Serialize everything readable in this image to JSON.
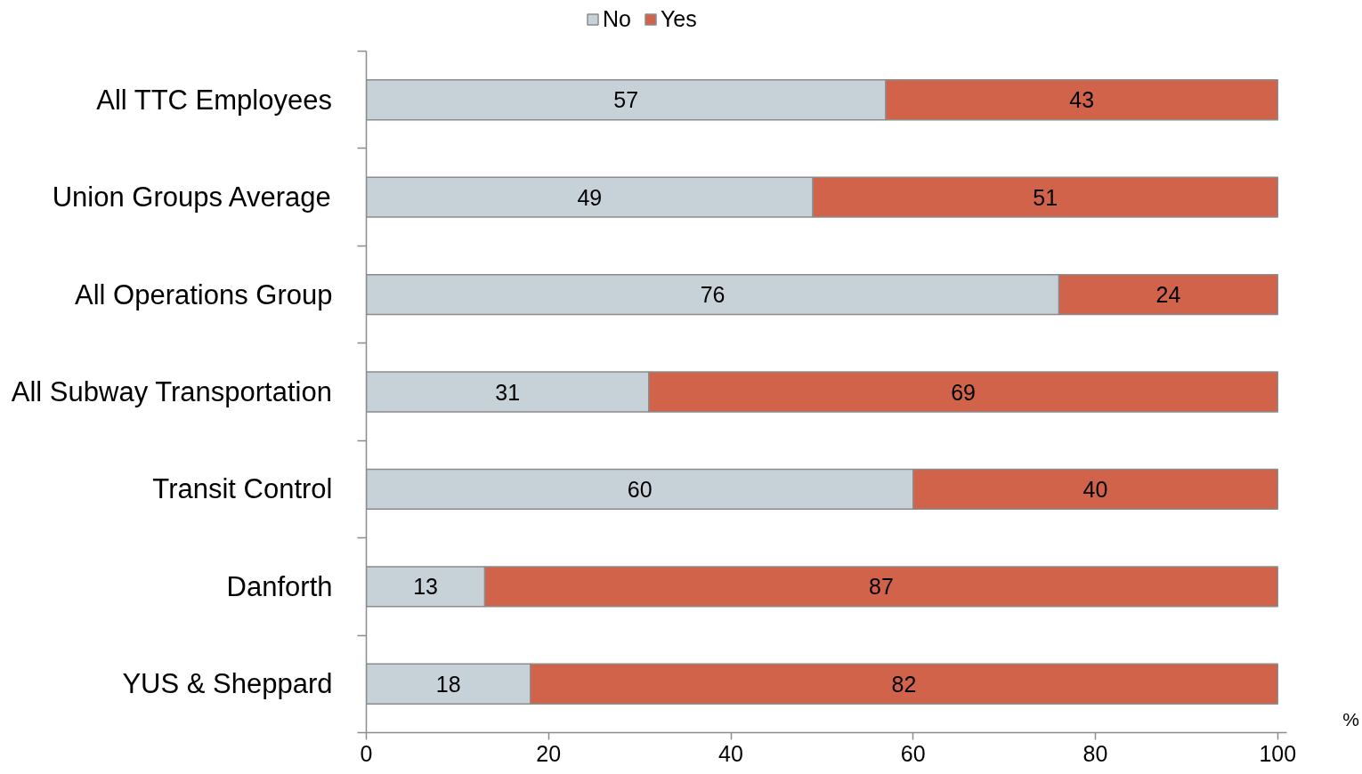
{
  "chart_data": {
    "type": "bar",
    "orientation": "horizontal",
    "stacked": true,
    "categories": [
      "All TTC Employees",
      "Union Groups Average",
      "All Operations Group",
      "All Subway Transportation",
      "Transit Control",
      "Danforth",
      "YUS & Sheppard"
    ],
    "series": [
      {
        "name": "No",
        "color": "#c7d1d8",
        "values": [
          57,
          49,
          76,
          31,
          60,
          13,
          18
        ]
      },
      {
        "name": "Yes",
        "color": "#d0634a",
        "values": [
          43,
          51,
          24,
          69,
          40,
          87,
          82
        ]
      }
    ],
    "xlim": [
      0,
      101
    ],
    "xticks": [
      0,
      20,
      40,
      60,
      80,
      100
    ],
    "xlabel": "%",
    "data_labels": true,
    "legend": "top",
    "grid": false
  }
}
